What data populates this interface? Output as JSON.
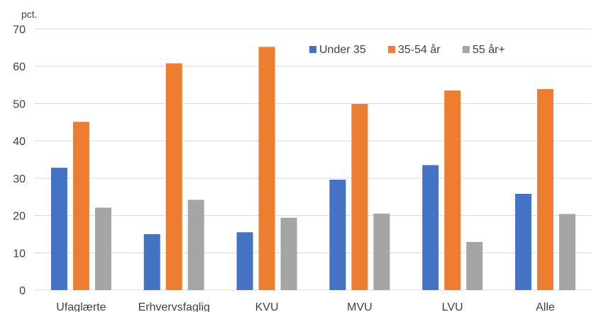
{
  "chart_data": {
    "type": "bar",
    "title": "",
    "ylabel": "pct.",
    "xlabel": "",
    "categories": [
      "Ufaglærte",
      "Erhvervsfaglig",
      "KVU",
      "MVU",
      "LVU",
      "Alle"
    ],
    "series": [
      {
        "name": "Under 35",
        "color": "#4472c4",
        "values": [
          32.8,
          15.0,
          15.5,
          29.6,
          33.5,
          25.8
        ]
      },
      {
        "name": "35-54 år",
        "color": "#ed7d31",
        "values": [
          45.1,
          60.8,
          65.2,
          49.9,
          53.5,
          53.9
        ]
      },
      {
        "name": "55 år+",
        "color": "#a5a5a5",
        "values": [
          22.1,
          24.2,
          19.4,
          20.5,
          12.9,
          20.4
        ]
      }
    ],
    "ylim": [
      0,
      70
    ],
    "yticks": [
      0,
      10,
      20,
      30,
      40,
      50,
      60,
      70
    ],
    "grid": true,
    "legend_position": "top-right"
  }
}
